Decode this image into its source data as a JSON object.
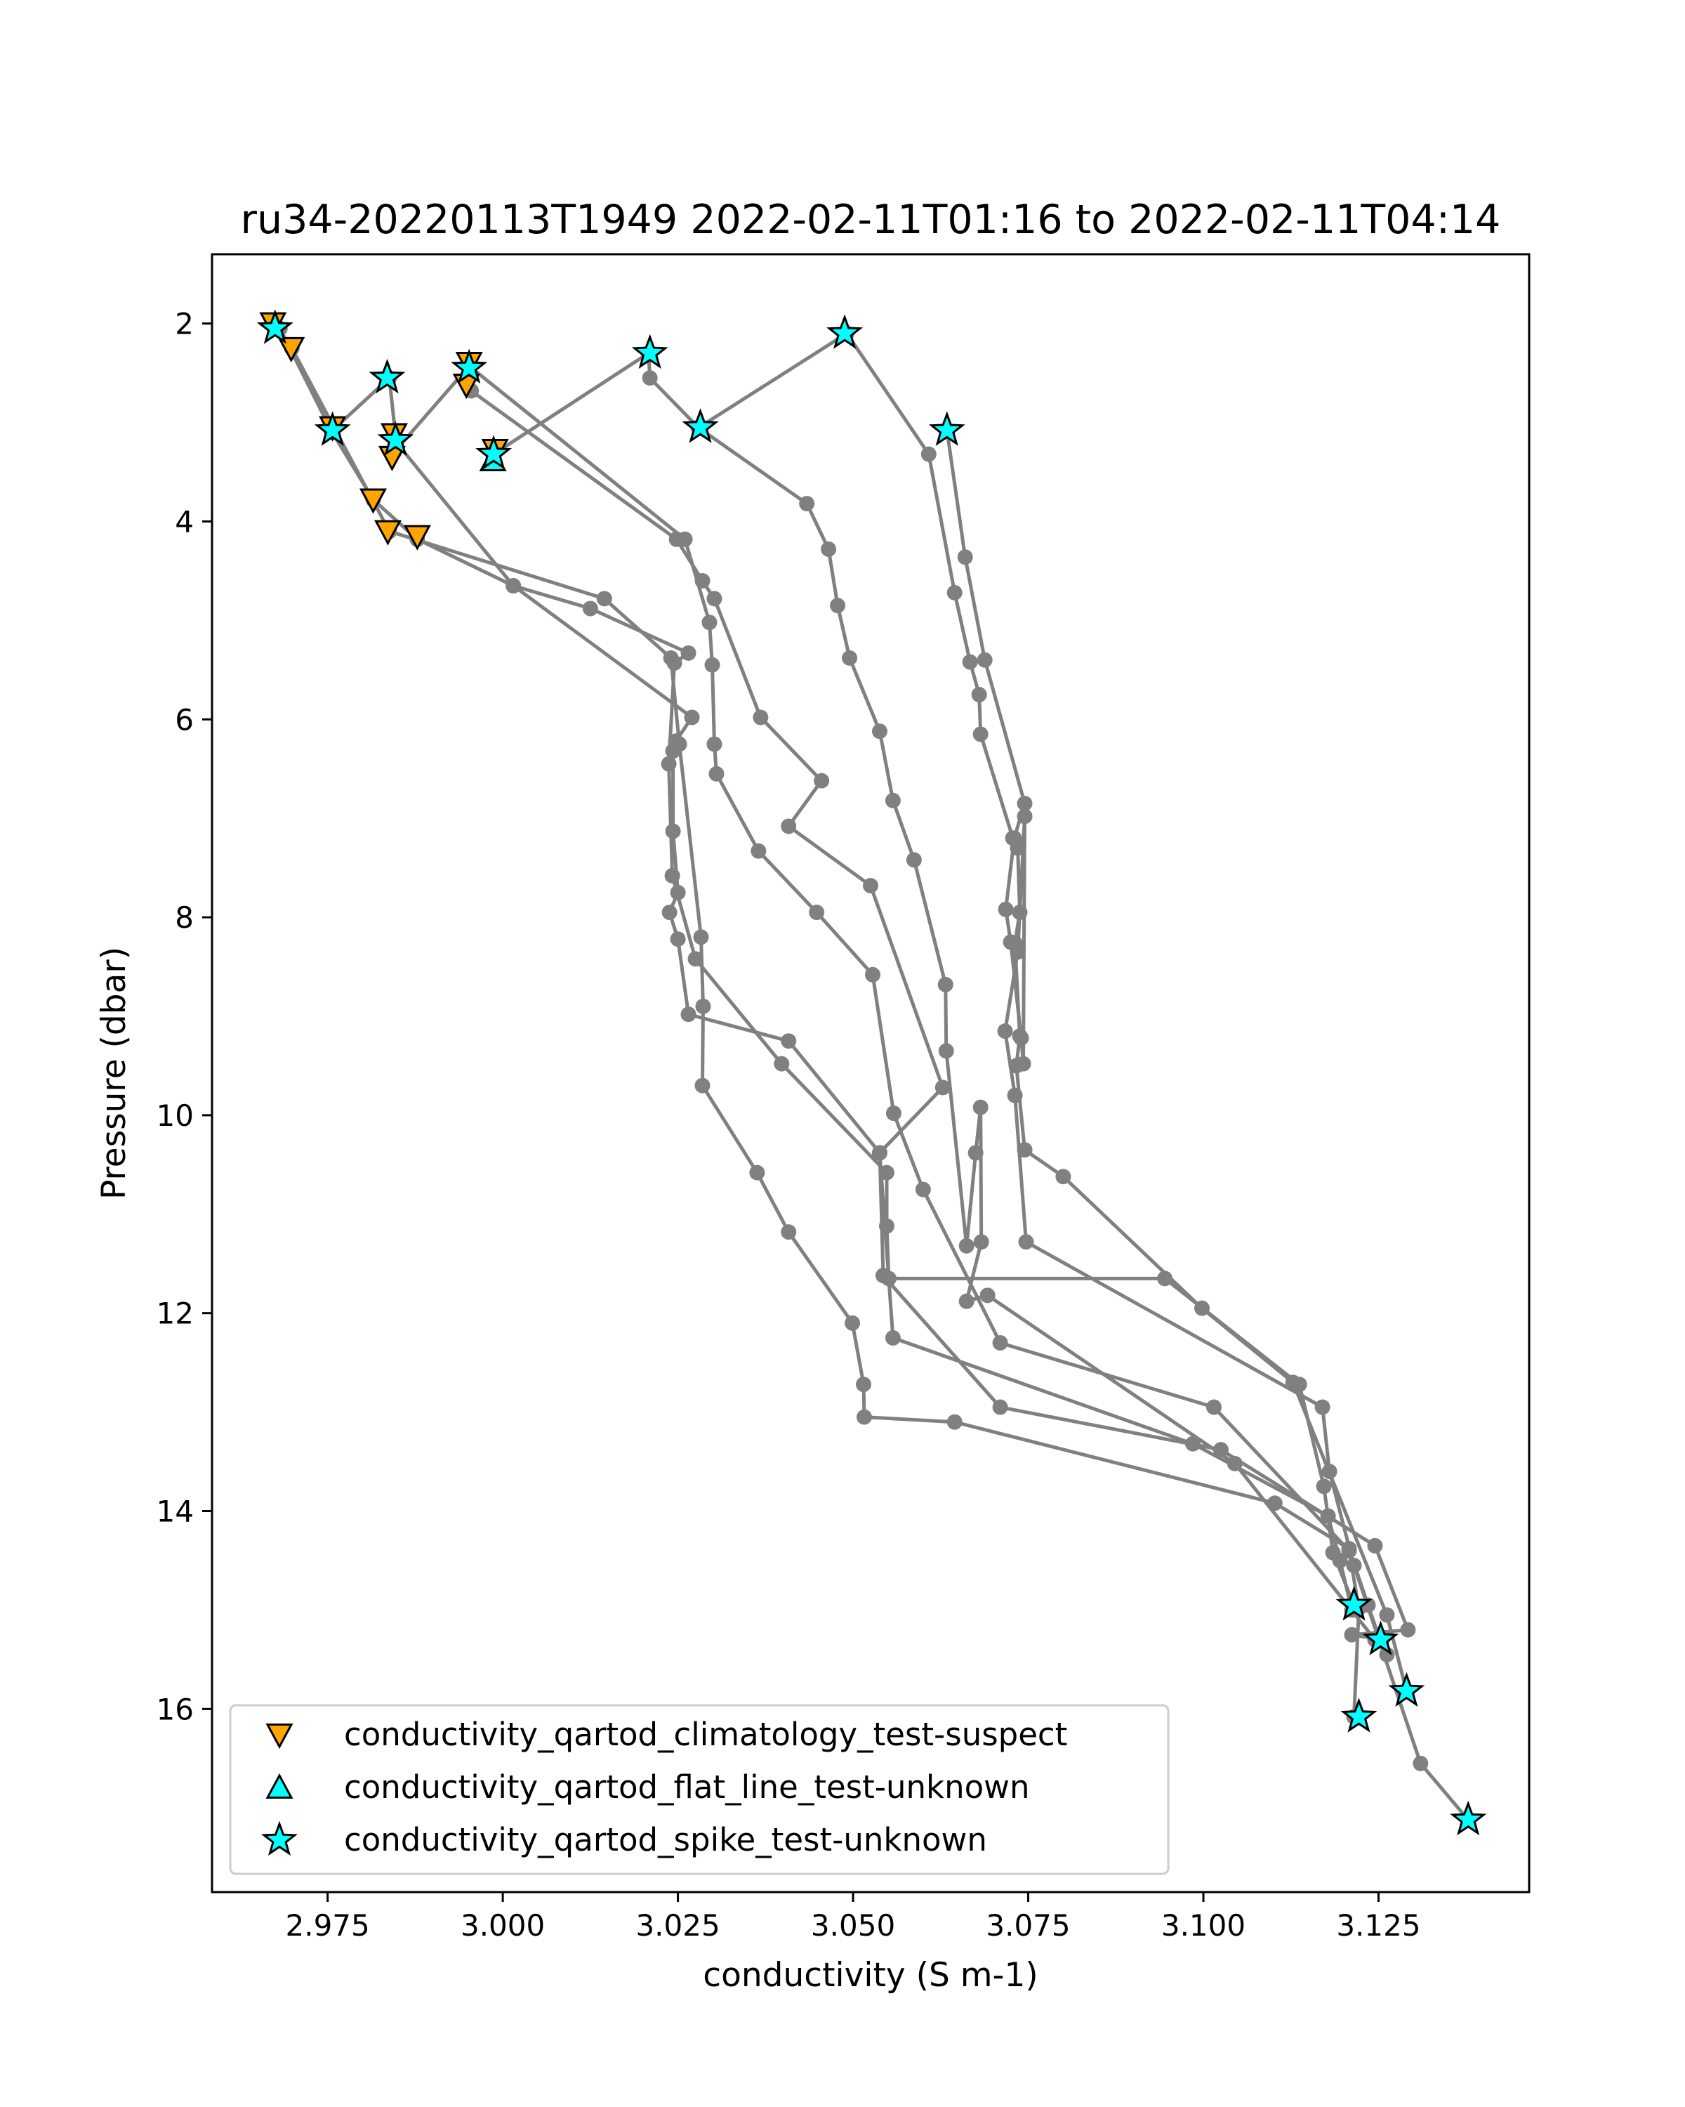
{
  "chart_data": {
    "type": "scatter",
    "title": "ru34-20220113T1949 2022-02-11T01:16 to 2022-02-11T04:14",
    "xlabel": "conductivity (S m-1)",
    "ylabel": "Pressure (dbar)",
    "xlim": [
      2.9585,
      3.1465
    ],
    "ylim": [
      17.85,
      1.3
    ],
    "y_inverted": true,
    "x_ticks": [
      "2.975",
      "3.000",
      "3.025",
      "3.050",
      "3.075",
      "3.100",
      "3.125"
    ],
    "x_tick_values": [
      2.975,
      3.0,
      3.025,
      3.05,
      3.075,
      3.1,
      3.125
    ],
    "y_ticks": [
      "2",
      "4",
      "6",
      "8",
      "10",
      "12",
      "14",
      "16"
    ],
    "y_tick_values": [
      2,
      4,
      6,
      8,
      10,
      12,
      14,
      16
    ],
    "grid": false,
    "legend_position": "lower-left",
    "line_color": "#808080",
    "profiles": [
      {
        "x": [
          2.9682,
          2.9755,
          2.9815,
          2.9878,
          3.0015,
          3.0125,
          3.0265,
          3.0245,
          3.0237,
          3.0242,
          3.0275,
          3.0398,
          3.0548,
          3.0548,
          3.0551,
          3.0945,
          3.1137,
          3.1172,
          3.1185,
          3.1215
        ],
        "y": [
          2.05,
          3.08,
          3.78,
          4.18,
          4.65,
          4.88,
          5.33,
          5.43,
          6.45,
          7.58,
          8.42,
          9.48,
          10.58,
          11.12,
          11.65,
          11.65,
          12.72,
          13.75,
          14.42,
          14.95
        ]
      },
      {
        "x": [
          2.9699,
          2.9838,
          3.0145,
          3.024,
          3.0252,
          3.0283,
          3.0286,
          3.0285,
          3.0363,
          3.0408,
          3.0499,
          3.0515,
          3.0516,
          3.0645,
          3.1102,
          3.1208,
          3.1235,
          3.1252
        ],
        "y": [
          2.25,
          4.1,
          4.78,
          5.38,
          6.25,
          8.2,
          8.9,
          9.7,
          10.58,
          11.18,
          12.1,
          12.72,
          13.05,
          13.1,
          13.92,
          14.38,
          14.95,
          15.3
        ]
      },
      {
        "x": [
          2.9757,
          2.9838,
          2.9848,
          3.0015,
          3.027,
          3.0247,
          3.0243,
          3.0243,
          3.025,
          3.0238,
          3.025,
          3.0265,
          3.0408,
          3.0538,
          3.0557,
          3.0985,
          3.1178,
          3.1195,
          3.1212
        ],
        "y": [
          3.08,
          2.55,
          3.2,
          4.65,
          5.98,
          6.22,
          6.32,
          7.13,
          7.75,
          7.95,
          8.22,
          8.98,
          9.25,
          10.38,
          12.25,
          13.32,
          14.05,
          14.5,
          15.0
        ]
      },
      {
        "x": [
          2.9845,
          2.9952,
          3.026,
          3.0295,
          3.0299,
          3.0302,
          3.0305,
          3.0365,
          3.0448,
          3.0528,
          3.0558,
          3.06,
          3.071,
          3.1015,
          3.1208,
          3.1222,
          3.1215
        ],
        "y": [
          3.3,
          2.43,
          4.18,
          5.02,
          5.45,
          6.25,
          6.55,
          7.33,
          7.95,
          8.58,
          9.98,
          10.75,
          12.3,
          12.95,
          14.4,
          14.98,
          16.08
        ]
      },
      {
        "x": [
          2.9955,
          3.0248,
          3.0285,
          3.0302,
          3.0368,
          3.0455,
          3.0408,
          3.0525,
          3.0628,
          3.0538,
          3.0543,
          3.071,
          3.1025,
          3.1245,
          3.1292,
          3.1212,
          3.1255
        ],
        "y": [
          2.68,
          4.18,
          4.6,
          4.78,
          5.98,
          6.62,
          7.08,
          7.68,
          9.72,
          10.38,
          11.62,
          12.95,
          13.38,
          14.35,
          15.2,
          15.25,
          15.3
        ]
      },
      {
        "x": [
          2.9987,
          3.0208,
          3.021,
          3.0279,
          3.0434,
          3.0465,
          3.0478,
          3.0495,
          3.0538,
          3.0557,
          3.0587,
          3.0632,
          3.0633,
          3.0662,
          3.0675,
          3.0682,
          3.0683,
          3.0662,
          3.0692,
          3.1045,
          3.1245,
          3.1262
        ],
        "y": [
          3.32,
          2.3,
          2.55,
          3.05,
          3.82,
          4.28,
          4.85,
          5.38,
          6.12,
          6.82,
          7.42,
          8.68,
          9.35,
          11.32,
          10.38,
          9.92,
          11.28,
          11.88,
          11.82,
          13.52,
          15.3,
          15.45
        ]
      },
      {
        "x": [
          3.028,
          3.0491,
          3.0608,
          3.0645,
          3.0667,
          3.068,
          3.0682,
          3.0728,
          3.0735,
          3.0738,
          3.0731,
          3.0738,
          3.0733,
          3.0745,
          3.08,
          3.0998,
          3.1128,
          3.1262,
          3.129
        ],
        "y": [
          3.05,
          2.1,
          3.32,
          4.72,
          5.42,
          5.75,
          6.15,
          7.2,
          7.3,
          7.95,
          8.26,
          9.2,
          9.5,
          10.35,
          10.62,
          11.95,
          12.7,
          15.05,
          15.82
        ]
      },
      {
        "x": [
          3.0634,
          3.066,
          3.0688,
          3.0745,
          3.073,
          3.0718,
          3.0725,
          3.074,
          3.0743,
          3.0745,
          3.0735,
          3.0717,
          3.0731,
          3.0747,
          3.117,
          3.118,
          3.1215,
          3.131,
          3.1378
        ],
        "y": [
          3.08,
          4.36,
          5.4,
          6.85,
          7.2,
          7.92,
          8.25,
          9.22,
          9.48,
          6.98,
          8.35,
          9.15,
          9.8,
          11.28,
          12.95,
          13.6,
          14.55,
          16.55,
          17.12
        ]
      }
    ],
    "series": [
      {
        "name": "conductivity_qartod_climatology_test-suspect",
        "marker": "triangle-down",
        "color": "#ffa500",
        "x": [
          2.9672,
          2.9698,
          2.9757,
          2.9815,
          2.9836,
          2.9842,
          2.9845,
          2.9878,
          2.9948,
          2.9952,
          2.9989
        ],
        "y": [
          2.0,
          2.25,
          3.05,
          3.78,
          4.1,
          3.35,
          3.12,
          4.15,
          2.62,
          2.4,
          3.28
        ]
      },
      {
        "name": "conductivity_qartod_flat_line_test-unknown",
        "marker": "triangle-up",
        "color": "#00ffff",
        "x": [
          2.9986
        ],
        "y": [
          3.38
        ]
      },
      {
        "name": "conductivity_qartod_spike_test-unknown",
        "marker": "star",
        "color": "#00ffff",
        "x": [
          2.9675,
          2.9757,
          2.9835,
          2.9847,
          2.9952,
          2.9987,
          3.021,
          3.0282,
          3.0488,
          3.0634,
          3.1215,
          3.1253,
          3.1222,
          3.129,
          3.1378
        ],
        "y": [
          2.05,
          3.08,
          2.55,
          3.18,
          2.45,
          3.32,
          2.3,
          3.05,
          2.1,
          3.08,
          14.95,
          15.3,
          16.08,
          15.82,
          17.12
        ]
      }
    ]
  }
}
